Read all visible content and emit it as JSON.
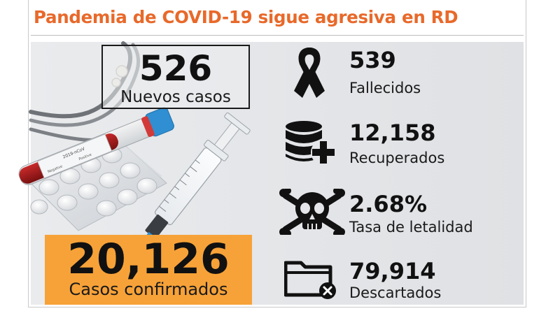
{
  "headline": "Pandemia de COVID-19 sigue agresiva en RD",
  "new_cases": {
    "value": "526",
    "label": "Nuevos casos"
  },
  "confirmed": {
    "value": "20,126",
    "label": "Casos confirmados"
  },
  "stats": [
    {
      "value": "539",
      "label": "Fallecidos",
      "icon": "awareness-ribbon-icon"
    },
    {
      "value": "12,158",
      "label": "Recuperados",
      "icon": "database-plus-icon"
    },
    {
      "value": "2.68%",
      "label": "Tasa de letalidad",
      "icon": "skull-crossbones-icon"
    },
    {
      "value": "79,914",
      "label": "Descartados",
      "icon": "folder-x-icon"
    }
  ],
  "photo": {
    "tube_label": "2019-nCoV",
    "tube_negative": "Negative",
    "tube_positive": "Positive"
  },
  "colors": {
    "headline": "#e8692a",
    "confirmed_box": "#f7a238",
    "text": "#111111"
  }
}
